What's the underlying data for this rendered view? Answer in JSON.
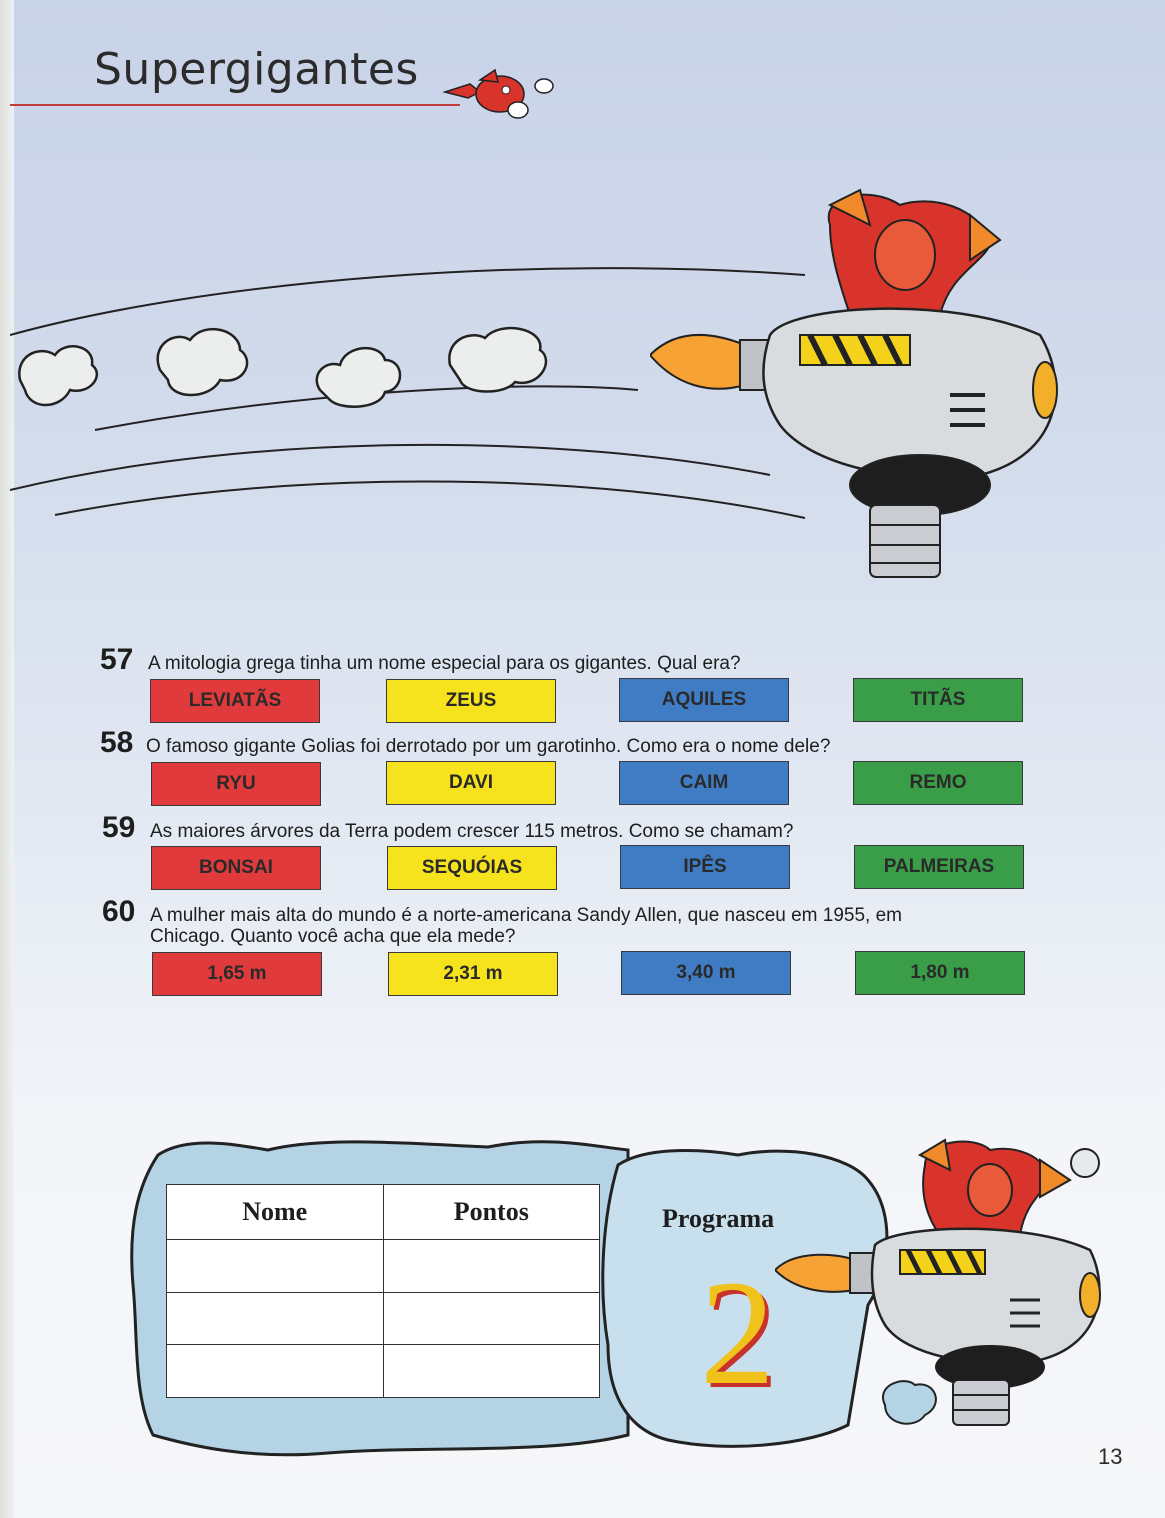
{
  "header": {
    "title": "Supergigantes"
  },
  "questions": [
    {
      "number": "57",
      "text": "A mitologia grega tinha um nome especial para os gigantes. Qual era?",
      "options": [
        "LEVIATÃS",
        "ZEUS",
        "AQUILES",
        "TITÃS"
      ]
    },
    {
      "number": "58",
      "text": "O famoso gigante Golias foi derrotado por um garotinho. Como era o nome dele?",
      "options": [
        "RYU",
        "DAVI",
        "CAIM",
        "REMO"
      ]
    },
    {
      "number": "59",
      "text": "As maiores árvores da Terra podem crescer 115 metros. Como se chamam?",
      "options": [
        "BONSAI",
        "SEQUÓIAS",
        "IPÊS",
        "PALMEIRAS"
      ]
    },
    {
      "number": "60",
      "text_line1": "A mulher mais alta do mundo é a norte-americana Sandy Allen, que nasceu em 1955, em",
      "text_line2": "Chicago. Quanto você acha que ela mede?",
      "options": [
        "1,65 m",
        "2,31 m",
        "3,40 m",
        "1,80 m"
      ]
    }
  ],
  "option_colors": {
    "red": "#e03a3c",
    "yellow": "#f7e21e",
    "blue": "#3f7cc4",
    "green": "#3a9e48"
  },
  "scoreboard": {
    "col_name": "Nome",
    "col_points": "Pontos"
  },
  "program": {
    "label": "Programa",
    "number": "2"
  },
  "page_number": "13",
  "illustrations": [
    "knuckles-flying-icon",
    "robotnik-egg-mobile-illustration",
    "cloud-trail",
    "robotnik-small-illustration"
  ]
}
